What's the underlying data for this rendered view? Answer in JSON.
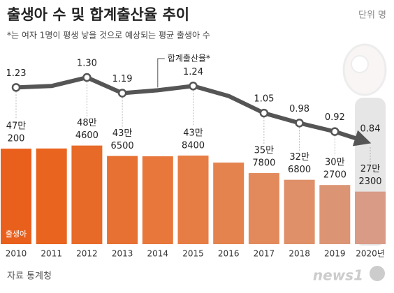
{
  "chart_data": {
    "type": "bar-line",
    "title": "출생아 수 및 합계출산율 추이",
    "subtitle": "*는 여자 1명이 평생 낳을 것으로 예상되는 평균 출생아 수",
    "unit": "단위 명",
    "source": "자료 통계청",
    "logo": "news1",
    "categories": [
      "2010",
      "2011",
      "2012",
      "2013",
      "2014",
      "2015",
      "2016",
      "2017",
      "2018",
      "2019",
      "2020년"
    ],
    "ylim": [
      30000,
      530000
    ],
    "y2lim": [
      0.6,
      1.4
    ],
    "series": [
      {
        "name": "출생아",
        "type": "bar",
        "colors": [
          "#e8601c",
          "#e8641f",
          "#e86a28",
          "#e77132",
          "#e7773b",
          "#e67d44",
          "#e4834e",
          "#e28a5c",
          "#df9068",
          "#dc9574",
          "#d99a86"
        ],
        "values": [
          470200,
          471000,
          484600,
          436500,
          435000,
          438400,
          406000,
          357800,
          326800,
          302700,
          272300
        ],
        "value_labels": [
          [
            "47만",
            "200"
          ],
          null,
          [
            "48만",
            "4600"
          ],
          [
            "43만",
            "6500"
          ],
          null,
          [
            "43만",
            "8400"
          ],
          null,
          [
            "35만",
            "7800"
          ],
          [
            "32만",
            "6800"
          ],
          [
            "30만",
            "2700"
          ],
          [
            "27만",
            "2300"
          ]
        ]
      },
      {
        "name": "합계출산율*",
        "type": "line",
        "axis": "y2",
        "color": "#555555",
        "values": [
          1.23,
          1.24,
          1.3,
          1.19,
          1.21,
          1.24,
          1.17,
          1.05,
          0.98,
          0.92,
          0.84
        ],
        "value_labels": [
          "1.23",
          null,
          "1.30",
          "1.19",
          null,
          "1.24",
          null,
          "1.05",
          "0.98",
          "0.92",
          "0.84"
        ]
      }
    ]
  }
}
